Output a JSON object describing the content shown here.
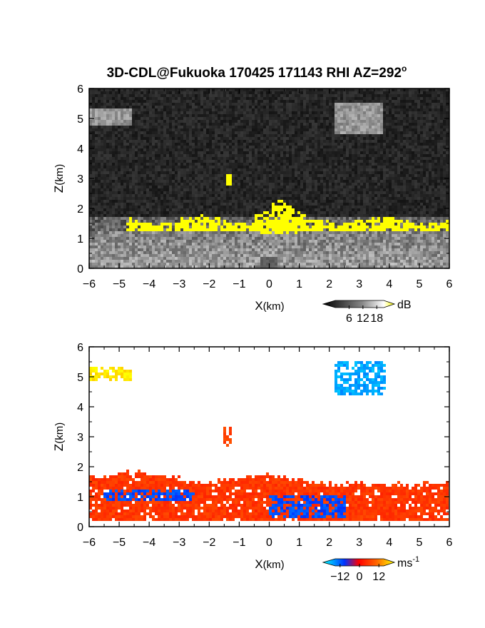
{
  "title": "3D-CDL@Fukuoka 170425 171143 RHI AZ=292",
  "title_suffix": "o",
  "chart_data": [
    {
      "type": "heatmap",
      "name": "reflectivity",
      "xlabel": "X",
      "xlabel_unit": "(km)",
      "ylabel": "Z",
      "ylabel_unit": "(km)",
      "xlim": [
        -6,
        6
      ],
      "ylim": [
        0,
        6
      ],
      "xticks": [
        -6,
        -5,
        -4,
        -3,
        -2,
        -1,
        0,
        1,
        2,
        3,
        4,
        5,
        6
      ],
      "yticks": [
        0,
        1,
        2,
        3,
        4,
        5,
        6
      ],
      "colorbar": {
        "unit": "dB",
        "ticks": [
          "6",
          "12",
          "18"
        ],
        "range": [
          0,
          21
        ],
        "colors": [
          "#000000",
          "#ffffff",
          "#ffff00"
        ]
      },
      "background_color": "#1c1c1c",
      "highlight_color": "#ffff00",
      "features": {
        "ground_clutter_top_km": 1.2,
        "high_echo_layer": {
          "x": [
            -6,
            6
          ],
          "z": [
            1.2,
            1.6
          ],
          "value_db": 19
        },
        "plume_at_origin": {
          "x": [
            -0.5,
            1.2
          ],
          "z": [
            1.1,
            2.3
          ],
          "value_db": 20
        },
        "isolated_echo": {
          "x": -1.35,
          "z": 2.95
        },
        "upper_bands": [
          {
            "x": [
              -6,
              -4.6
            ],
            "z": [
              4.8,
              5.3
            ]
          },
          {
            "x": [
              2.2,
              3.8
            ],
            "z": [
              4.5,
              5.5
            ]
          }
        ]
      }
    },
    {
      "type": "heatmap",
      "name": "doppler-velocity",
      "xlabel": "X",
      "xlabel_unit": "(km)",
      "ylabel": "Z",
      "ylabel_unit": "(km)",
      "xlim": [
        -6,
        6
      ],
      "ylim": [
        0,
        6
      ],
      "xticks": [
        -6,
        -5,
        -4,
        -3,
        -2,
        -1,
        0,
        1,
        2,
        3,
        4,
        5,
        6
      ],
      "yticks": [
        0,
        1,
        2,
        3,
        4,
        5,
        6
      ],
      "colorbar": {
        "unit": "ms",
        "unit_exponent": "-1",
        "ticks": [
          "-12",
          "0",
          "12"
        ],
        "range": [
          -15,
          15
        ],
        "colors": [
          "#00ffff",
          "#0000ff",
          "#ff0000",
          "#ffff00"
        ]
      },
      "regions": [
        {
          "x": [
            -6,
            6
          ],
          "z": [
            0.2,
            1.8
          ],
          "velocity_ms": 4
        },
        {
          "x": [
            0,
            2.6
          ],
          "z": [
            0.3,
            1.0
          ],
          "velocity_ms": -7
        },
        {
          "x": [
            -5.5,
            -2.5
          ],
          "z": [
            0.9,
            1.2
          ],
          "velocity_ms": -7
        },
        {
          "x": [
            -6,
            -4.6
          ],
          "z": [
            4.9,
            5.3
          ],
          "velocity_ms": 14
        },
        {
          "x": [
            2.2,
            3.9
          ],
          "z": [
            4.4,
            5.5
          ],
          "velocity_ms": -11
        },
        {
          "x": [
            -1.55,
            -1.25
          ],
          "z": [
            2.7,
            3.3
          ],
          "velocity_ms": 5
        }
      ]
    }
  ]
}
